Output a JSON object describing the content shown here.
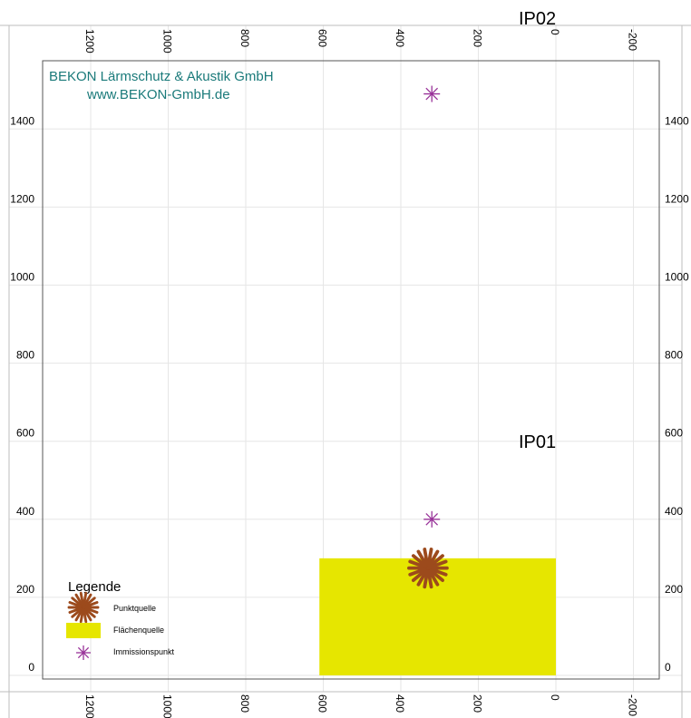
{
  "branding": {
    "company": "BEKON Lärmschutz & Akustik GmbH",
    "website": "www.BEKON-GmbH.de",
    "color": "#1a7a7a"
  },
  "axes": {
    "top_bottom_ticks": [
      "1200",
      "1000",
      "800",
      "600",
      "400",
      "200",
      "0",
      "-200"
    ],
    "left_right_ticks": [
      "1400",
      "1200",
      "1000",
      "800",
      "600",
      "400",
      "200",
      "0"
    ]
  },
  "points": {
    "ip02": {
      "label": "IP02",
      "x": 320,
      "y": 1490
    },
    "ip01": {
      "label": "IP01",
      "x": 320,
      "y": 400
    }
  },
  "area_source": {
    "x_from": 0,
    "x_to": 610,
    "y_from": 0,
    "y_to": 300,
    "color": "#e6e600"
  },
  "point_source": {
    "x": 330,
    "y": 275,
    "color": "#9c4a1c"
  },
  "receptor_color": "#993399",
  "legend": {
    "title": "Legende",
    "items": [
      {
        "symbol": "point-source",
        "label": "Punktquelle"
      },
      {
        "symbol": "area-source",
        "label": "Flächenquelle"
      },
      {
        "symbol": "receptor",
        "label": "Immissionspunkt"
      }
    ]
  }
}
